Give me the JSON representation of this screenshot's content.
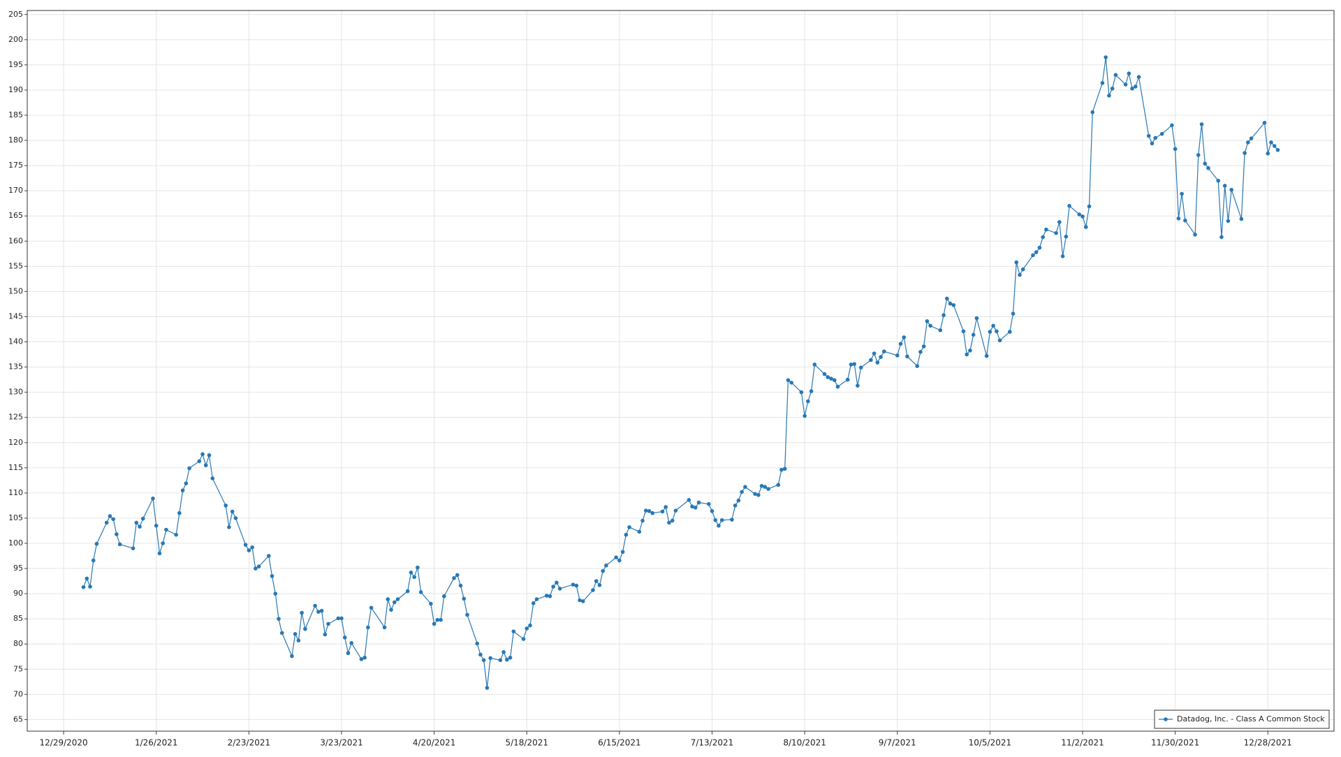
{
  "chart_data": {
    "type": "line",
    "series": [
      {
        "name": "Datadog, Inc. - Class A Common Stock",
        "color": "#2878b5",
        "x": [
          "1/4/2021",
          "1/5/2021",
          "1/6/2021",
          "1/7/2021",
          "1/8/2021",
          "1/11/2021",
          "1/12/2021",
          "1/13/2021",
          "1/14/2021",
          "1/15/2021",
          "1/19/2021",
          "1/20/2021",
          "1/21/2021",
          "1/22/2021",
          "1/25/2021",
          "1/26/2021",
          "1/27/2021",
          "1/28/2021",
          "1/29/2021",
          "2/1/2021",
          "2/2/2021",
          "2/3/2021",
          "2/4/2021",
          "2/5/2021",
          "2/8/2021",
          "2/9/2021",
          "2/10/2021",
          "2/11/2021",
          "2/12/2021",
          "2/16/2021",
          "2/17/2021",
          "2/18/2021",
          "2/19/2021",
          "2/22/2021",
          "2/23/2021",
          "2/24/2021",
          "2/25/2021",
          "2/26/2021",
          "3/1/2021",
          "3/2/2021",
          "3/3/2021",
          "3/4/2021",
          "3/5/2021",
          "3/8/2021",
          "3/9/2021",
          "3/10/2021",
          "3/11/2021",
          "3/12/2021",
          "3/15/2021",
          "3/16/2021",
          "3/17/2021",
          "3/18/2021",
          "3/19/2021",
          "3/22/2021",
          "3/23/2021",
          "3/24/2021",
          "3/25/2021",
          "3/26/2021",
          "3/29/2021",
          "3/30/2021",
          "3/31/2021",
          "4/1/2021",
          "4/5/2021",
          "4/6/2021",
          "4/7/2021",
          "4/8/2021",
          "4/9/2021",
          "4/12/2021",
          "4/13/2021",
          "4/14/2021",
          "4/15/2021",
          "4/16/2021",
          "4/19/2021",
          "4/20/2021",
          "4/21/2021",
          "4/22/2021",
          "4/23/2021",
          "4/26/2021",
          "4/27/2021",
          "4/28/2021",
          "4/29/2021",
          "4/30/2021",
          "5/3/2021",
          "5/4/2021",
          "5/5/2021",
          "5/6/2021",
          "5/7/2021",
          "5/10/2021",
          "5/11/2021",
          "5/12/2021",
          "5/13/2021",
          "5/14/2021",
          "5/17/2021",
          "5/18/2021",
          "5/19/2021",
          "5/20/2021",
          "5/21/2021",
          "5/24/2021",
          "5/25/2021",
          "5/26/2021",
          "5/27/2021",
          "5/28/2021",
          "6/1/2021",
          "6/2/2021",
          "6/3/2021",
          "6/4/2021",
          "6/7/2021",
          "6/8/2021",
          "6/9/2021",
          "6/10/2021",
          "6/11/2021",
          "6/14/2021",
          "6/15/2021",
          "6/16/2021",
          "6/17/2021",
          "6/18/2021",
          "6/21/2021",
          "6/22/2021",
          "6/23/2021",
          "6/24/2021",
          "6/25/2021",
          "6/28/2021",
          "6/29/2021",
          "6/30/2021",
          "7/1/2021",
          "7/2/2021",
          "7/6/2021",
          "7/7/2021",
          "7/8/2021",
          "7/9/2021",
          "7/12/2021",
          "7/13/2021",
          "7/14/2021",
          "7/15/2021",
          "7/16/2021",
          "7/19/2021",
          "7/20/2021",
          "7/21/2021",
          "7/22/2021",
          "7/23/2021",
          "7/26/2021",
          "7/27/2021",
          "7/28/2021",
          "7/29/2021",
          "7/30/2021",
          "8/2/2021",
          "8/3/2021",
          "8/4/2021",
          "8/5/2021",
          "8/6/2021",
          "8/9/2021",
          "8/10/2021",
          "8/11/2021",
          "8/12/2021",
          "8/13/2021",
          "8/16/2021",
          "8/17/2021",
          "8/18/2021",
          "8/19/2021",
          "8/20/2021",
          "8/23/2021",
          "8/24/2021",
          "8/25/2021",
          "8/26/2021",
          "8/27/2021",
          "8/30/2021",
          "8/31/2021",
          "9/1/2021",
          "9/2/2021",
          "9/3/2021",
          "9/7/2021",
          "9/8/2021",
          "9/9/2021",
          "9/10/2021",
          "9/13/2021",
          "9/14/2021",
          "9/15/2021",
          "9/16/2021",
          "9/17/2021",
          "9/20/2021",
          "9/21/2021",
          "9/22/2021",
          "9/23/2021",
          "9/24/2021",
          "9/27/2021",
          "9/28/2021",
          "9/29/2021",
          "9/30/2021",
          "10/1/2021",
          "10/4/2021",
          "10/5/2021",
          "10/6/2021",
          "10/7/2021",
          "10/8/2021",
          "10/11/2021",
          "10/12/2021",
          "10/13/2021",
          "10/14/2021",
          "10/15/2021",
          "10/18/2021",
          "10/19/2021",
          "10/20/2021",
          "10/21/2021",
          "10/22/2021",
          "10/25/2021",
          "10/26/2021",
          "10/27/2021",
          "10/28/2021",
          "10/29/2021",
          "11/1/2021",
          "11/2/2021",
          "11/3/2021",
          "11/4/2021",
          "11/5/2021",
          "11/8/2021",
          "11/9/2021",
          "11/10/2021",
          "11/11/2021",
          "11/12/2021",
          "11/15/2021",
          "11/16/2021",
          "11/17/2021",
          "11/18/2021",
          "11/19/2021",
          "11/22/2021",
          "11/23/2021",
          "11/24/2021",
          "11/26/2021",
          "11/29/2021",
          "11/30/2021",
          "12/1/2021",
          "12/2/2021",
          "12/3/2021",
          "12/6/2021",
          "12/7/2021",
          "12/8/2021",
          "12/9/2021",
          "12/10/2021",
          "12/13/2021",
          "12/14/2021",
          "12/15/2021",
          "12/16/2021",
          "12/17/2021",
          "12/20/2021",
          "12/21/2021",
          "12/22/2021",
          "12/23/2021",
          "12/27/2021",
          "12/28/2021",
          "12/29/2021",
          "12/30/2021",
          "12/31/2021"
        ],
        "values": [
          91.3,
          93.0,
          91.4,
          96.6,
          99.9,
          104.1,
          105.4,
          104.8,
          101.8,
          99.8,
          99.0,
          104.1,
          103.3,
          104.9,
          108.9,
          103.5,
          98.0,
          100.0,
          102.7,
          101.7,
          106.0,
          110.5,
          111.9,
          114.9,
          116.3,
          117.7,
          115.5,
          117.5,
          112.9,
          107.5,
          103.2,
          106.3,
          105.0,
          99.7,
          98.6,
          99.2,
          95.0,
          95.4,
          97.5,
          93.5,
          90.0,
          85.0,
          82.2,
          77.6,
          82.0,
          80.7,
          86.2,
          83.0,
          87.6,
          86.4,
          86.6,
          81.9,
          84.0,
          85.1,
          85.1,
          81.3,
          78.2,
          80.2,
          77.0,
          77.3,
          83.3,
          87.2,
          83.3,
          88.9,
          86.8,
          88.3,
          88.9,
          90.5,
          94.2,
          93.3,
          95.2,
          90.3,
          88.0,
          84.0,
          84.8,
          84.8,
          89.5,
          93.1,
          93.7,
          91.6,
          89.0,
          85.8,
          80.1,
          77.9,
          76.8,
          71.3,
          77.2,
          76.8,
          78.4,
          76.9,
          77.3,
          82.5,
          81.0,
          83.1,
          83.7,
          88.1,
          88.9,
          89.6,
          89.5,
          91.4,
          92.2,
          91.0,
          91.8,
          91.6,
          88.7,
          88.5,
          90.7,
          92.5,
          91.7,
          94.5,
          95.6,
          97.2,
          96.6,
          98.3,
          101.7,
          103.2,
          102.3,
          104.5,
          106.5,
          106.4,
          106.0,
          106.3,
          107.2,
          104.1,
          104.5,
          106.5,
          108.6,
          107.3,
          107.1,
          108.1,
          107.8,
          106.4,
          104.6,
          103.5,
          104.6,
          104.7,
          107.5,
          108.5,
          110.2,
          111.2,
          109.8,
          109.6,
          111.4,
          111.2,
          110.8,
          111.6,
          114.6,
          114.8,
          132.4,
          131.9,
          130.0,
          125.3,
          128.2,
          130.2,
          135.5,
          133.6,
          133.0,
          132.7,
          132.4,
          131.1,
          132.5,
          135.5,
          135.6,
          131.3,
          134.9,
          136.4,
          137.7,
          135.9,
          137.0,
          138.1,
          137.3,
          139.6,
          140.9,
          137.1,
          135.2,
          138.0,
          139.1,
          144.1,
          143.2,
          142.3,
          145.3,
          148.6,
          147.6,
          147.3,
          142.1,
          137.5,
          138.3,
          141.4,
          144.7,
          137.2,
          142.0,
          143.2,
          142.1,
          140.3,
          142.0,
          145.6,
          155.8,
          153.3,
          154.4,
          157.2,
          157.8,
          158.7,
          160.8,
          162.3,
          161.6,
          163.8,
          157.0,
          160.9,
          167.0,
          165.3,
          164.9,
          162.8,
          166.9,
          185.6,
          191.4,
          196.5,
          188.9,
          190.3,
          193.0,
          191.1,
          193.3,
          190.3,
          190.7,
          192.6,
          180.9,
          179.4,
          180.5,
          181.3,
          183.0,
          178.3,
          164.5,
          169.4,
          164.1,
          161.3,
          177.1,
          183.2,
          175.4,
          174.5,
          172.0,
          160.8,
          171.0,
          164.0,
          170.2,
          164.4,
          177.5,
          179.6,
          180.4,
          183.5,
          177.4,
          179.6,
          178.9,
          178.1
        ]
      }
    ],
    "xlim": [
      "12/18/2020",
      "1/17/2022"
    ],
    "xticks": [
      "12/29/2020",
      "1/26/2021",
      "2/23/2021",
      "3/23/2021",
      "4/20/2021",
      "5/18/2021",
      "6/15/2021",
      "7/13/2021",
      "8/10/2021",
      "9/7/2021",
      "10/5/2021",
      "11/2/2021",
      "11/30/2021",
      "12/28/2021"
    ],
    "ylim": [
      62.7,
      205.8
    ],
    "yticks": [
      65,
      70,
      75,
      80,
      85,
      90,
      95,
      100,
      105,
      110,
      115,
      120,
      125,
      130,
      135,
      140,
      145,
      150,
      155,
      160,
      165,
      170,
      175,
      180,
      185,
      190,
      195,
      200,
      205
    ],
    "grid": true,
    "legend": "lower right"
  }
}
